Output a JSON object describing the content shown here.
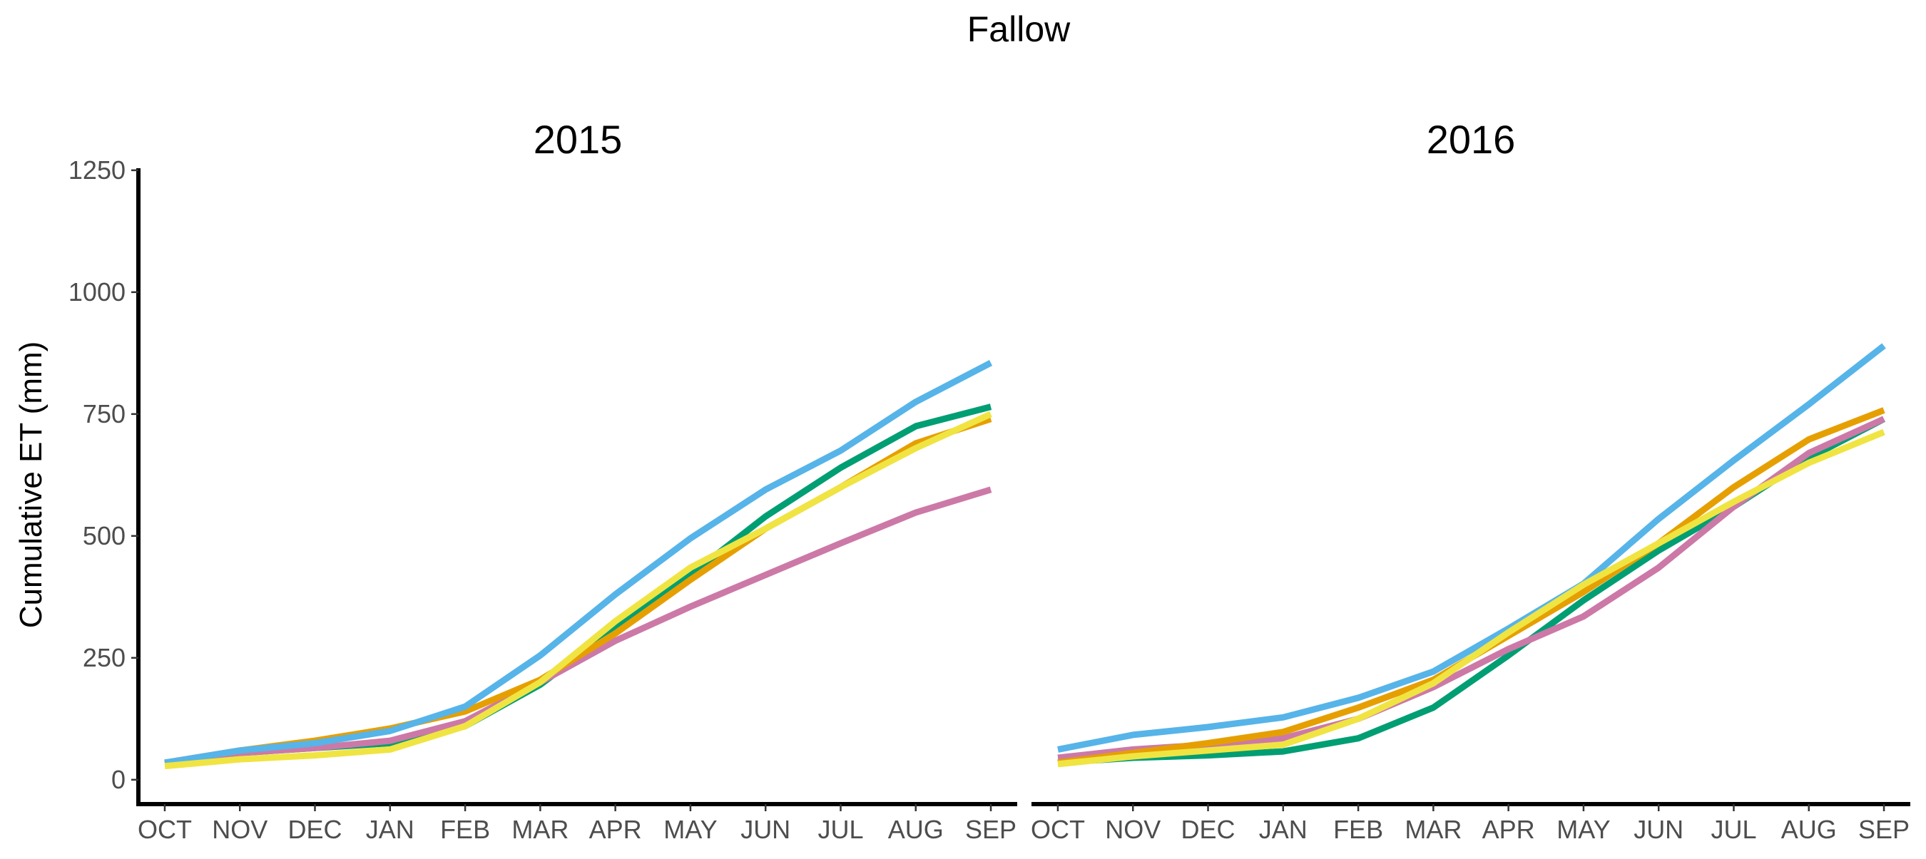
{
  "title": "Fallow",
  "chart_data": {
    "type": "line",
    "title": "Fallow",
    "ylabel": "Cumulative ET (mm)",
    "xlabel": "",
    "ylim": [
      -50,
      1260
    ],
    "yticks": [
      0,
      250,
      500,
      750,
      1000,
      1250
    ],
    "categories": [
      "OCT",
      "NOV",
      "DEC",
      "JAN",
      "FEB",
      "MAR",
      "APR",
      "MAY",
      "JUN",
      "JUL",
      "AUG",
      "SEP"
    ],
    "grid": false,
    "legend": "none",
    "panels": [
      {
        "title": "2015",
        "series": [
          {
            "color": "#009E73",
            "values": [
              35,
              55,
              65,
              75,
              110,
              195,
              310,
              420,
              540,
              640,
              725,
              765
            ]
          },
          {
            "color": "#CC79A7",
            "values": [
              35,
              55,
              65,
              80,
              120,
              200,
              285,
              355,
              420,
              485,
              548,
              595
            ]
          },
          {
            "color": "#E69F00",
            "values": [
              35,
              60,
              80,
              105,
              140,
              205,
              300,
              410,
              515,
              600,
              690,
              740
            ]
          },
          {
            "color": "#56B4E9",
            "values": [
              35,
              60,
              75,
              100,
              150,
              255,
              380,
              495,
              595,
              675,
              775,
              855
            ]
          },
          {
            "color": "#F0E442",
            "values": [
              28,
              42,
              50,
              62,
              110,
              200,
              325,
              435,
              515,
              600,
              680,
              750
            ]
          }
        ]
      },
      {
        "title": "2016",
        "series": [
          {
            "color": "#009E73",
            "values": [
              35,
              45,
              50,
              58,
              85,
              148,
              255,
              368,
              470,
              560,
              660,
              740
            ]
          },
          {
            "color": "#CC79A7",
            "values": [
              45,
              62,
              72,
              85,
              125,
              190,
              268,
              335,
              435,
              560,
              670,
              740
            ]
          },
          {
            "color": "#E69F00",
            "values": [
              35,
              55,
              75,
              98,
              148,
              205,
              295,
              385,
              485,
              600,
              698,
              758
            ]
          },
          {
            "color": "#56B4E9",
            "values": [
              62,
              92,
              108,
              128,
              168,
              222,
              310,
              402,
              535,
              655,
              770,
              890
            ]
          },
          {
            "color": "#F0E442",
            "values": [
              32,
              48,
              60,
              72,
              125,
              198,
              302,
              400,
              485,
              570,
              650,
              713
            ]
          }
        ]
      }
    ]
  }
}
